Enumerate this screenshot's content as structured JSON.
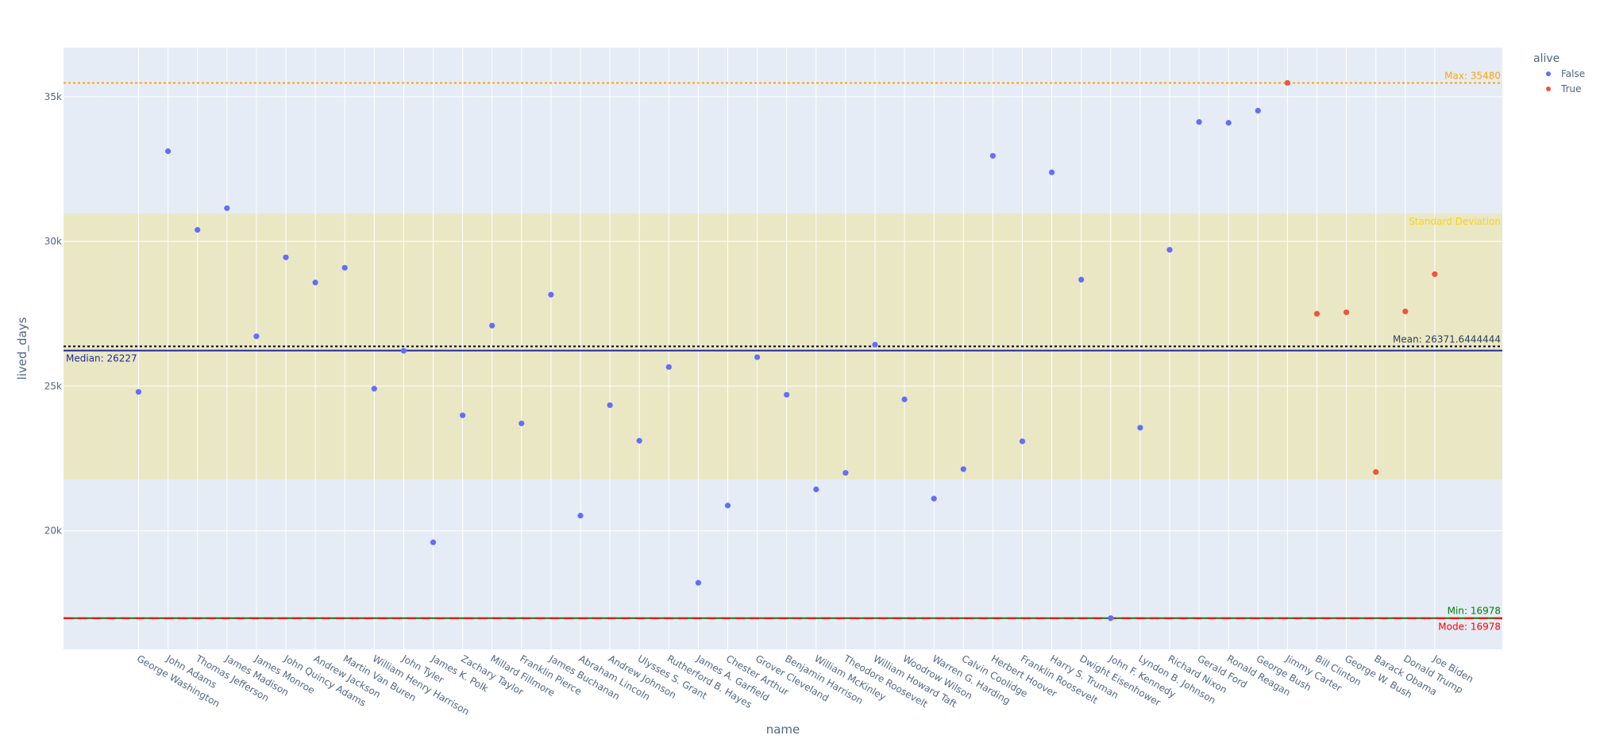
{
  "chart_data": {
    "type": "scatter",
    "xlabel": "name",
    "ylabel": "lived_days",
    "ylim": [
      15900,
      36700
    ],
    "yticks": [
      {
        "value": 20000,
        "label": "20k"
      },
      {
        "value": 25000,
        "label": "25k"
      },
      {
        "value": 30000,
        "label": "30k"
      },
      {
        "value": 35000,
        "label": "35k"
      }
    ],
    "categories": [
      "George Washington",
      "John Adams",
      "Thomas Jefferson",
      "James Madison",
      "James Monroe",
      "John Quincy Adams",
      "Andrew Jackson",
      "Martin Van Buren",
      "William Henry Harrison",
      "John Tyler",
      "James K. Polk",
      "Zachary Taylor",
      "Millard Fillmore",
      "Franklin Pierce",
      "James Buchanan",
      "Abraham Lincoln",
      "Andrew Johnson",
      "Ulysses S. Grant",
      "Rutherford B. Hayes",
      "James A. Garfield",
      "Chester Arthur",
      "Grover Cleveland",
      "Benjamin Harrison",
      "William McKinley",
      "Theodore Roosevelt",
      "William Howard Taft",
      "Woodrow Wilson",
      "Warren G. Harding",
      "Calvin Coolidge",
      "Herbert Hoover",
      "Franklin Roosevelt",
      "Harry S. Truman",
      "Dwight Eisenhower",
      "John F. Kennedy",
      "Lyndon B. Johnson",
      "Richard Nixon",
      "Gerald Ford",
      "Ronald Reagan",
      "George Bush",
      "Jimmy Carter",
      "Bill Clinton",
      "George W. Bush",
      "Barack Obama",
      "Donald Trump",
      "Joe Biden"
    ],
    "series": [
      {
        "name": "False",
        "color": "#636efa",
        "points": [
          {
            "x": "George Washington",
            "y": 24800
          },
          {
            "x": "John Adams",
            "y": 33120
          },
          {
            "x": "Thomas Jefferson",
            "y": 30400
          },
          {
            "x": "James Madison",
            "y": 31150
          },
          {
            "x": "James Monroe",
            "y": 26720
          },
          {
            "x": "John Quincy Adams",
            "y": 29450
          },
          {
            "x": "Andrew Jackson",
            "y": 28580
          },
          {
            "x": "Martin Van Buren",
            "y": 29090
          },
          {
            "x": "William Henry Harrison",
            "y": 24910
          },
          {
            "x": "John Tyler",
            "y": 26220
          },
          {
            "x": "James K. Polk",
            "y": 19600
          },
          {
            "x": "Zachary Taylor",
            "y": 23990
          },
          {
            "x": "Millard Fillmore",
            "y": 27090
          },
          {
            "x": "Franklin Pierce",
            "y": 23710
          },
          {
            "x": "James Buchanan",
            "y": 28160
          },
          {
            "x": "Abraham Lincoln",
            "y": 20520
          },
          {
            "x": "Andrew Johnson",
            "y": 24340
          },
          {
            "x": "Ulysses S. Grant",
            "y": 23110
          },
          {
            "x": "Rutherford B. Hayes",
            "y": 25660
          },
          {
            "x": "James A. Garfield",
            "y": 18200
          },
          {
            "x": "Chester Arthur",
            "y": 20870
          },
          {
            "x": "Grover Cleveland",
            "y": 26000
          },
          {
            "x": "Benjamin Harrison",
            "y": 24700
          },
          {
            "x": "William McKinley",
            "y": 21430
          },
          {
            "x": "Theodore Roosevelt",
            "y": 22000
          },
          {
            "x": "William Howard Taft",
            "y": 26430
          },
          {
            "x": "Woodrow Wilson",
            "y": 24540
          },
          {
            "x": "Warren G. Harding",
            "y": 21110
          },
          {
            "x": "Calvin Coolidge",
            "y": 22130
          },
          {
            "x": "Herbert Hoover",
            "y": 32960
          },
          {
            "x": "Franklin Roosevelt",
            "y": 23090
          },
          {
            "x": "Harry S. Truman",
            "y": 32390
          },
          {
            "x": "Dwight Eisenhower",
            "y": 28680
          },
          {
            "x": "John F. Kennedy",
            "y": 16978
          },
          {
            "x": "Lyndon B. Johnson",
            "y": 23560
          },
          {
            "x": "Richard Nixon",
            "y": 29710
          },
          {
            "x": "Gerald Ford",
            "y": 34130
          },
          {
            "x": "Ronald Reagan",
            "y": 34100
          },
          {
            "x": "George Bush",
            "y": 34520
          }
        ]
      },
      {
        "name": "True",
        "color": "#ef553b",
        "points": [
          {
            "x": "Jimmy Carter",
            "y": 35480
          },
          {
            "x": "Bill Clinton",
            "y": 27500
          },
          {
            "x": "George W. Bush",
            "y": 27550
          },
          {
            "x": "Barack Obama",
            "y": 22030
          },
          {
            "x": "Donald Trump",
            "y": 27580
          },
          {
            "x": "Joe Biden",
            "y": 28870
          }
        ]
      }
    ],
    "legend": {
      "title": "alive",
      "position": "top-right"
    },
    "reference_lines": {
      "max": {
        "label": "Max: 35480",
        "value": 35480,
        "color": "#ffa500"
      },
      "mean": {
        "label": "Mean: 26371.6444444",
        "value": 26371.6444444,
        "color": "#000000"
      },
      "median": {
        "label": "Median: 26227",
        "value": 26227,
        "color": "#1f2a9b"
      },
      "min": {
        "label": "Min: 16978",
        "value": 16978,
        "color": "#008000"
      },
      "mode": {
        "label": "Mode: 16978",
        "value": 16978,
        "color": "#ff0000"
      }
    },
    "std_band": {
      "label": "Standard Deviation",
      "low": 21780,
      "high": 30960,
      "color": "#ffd700"
    },
    "grid": true
  }
}
